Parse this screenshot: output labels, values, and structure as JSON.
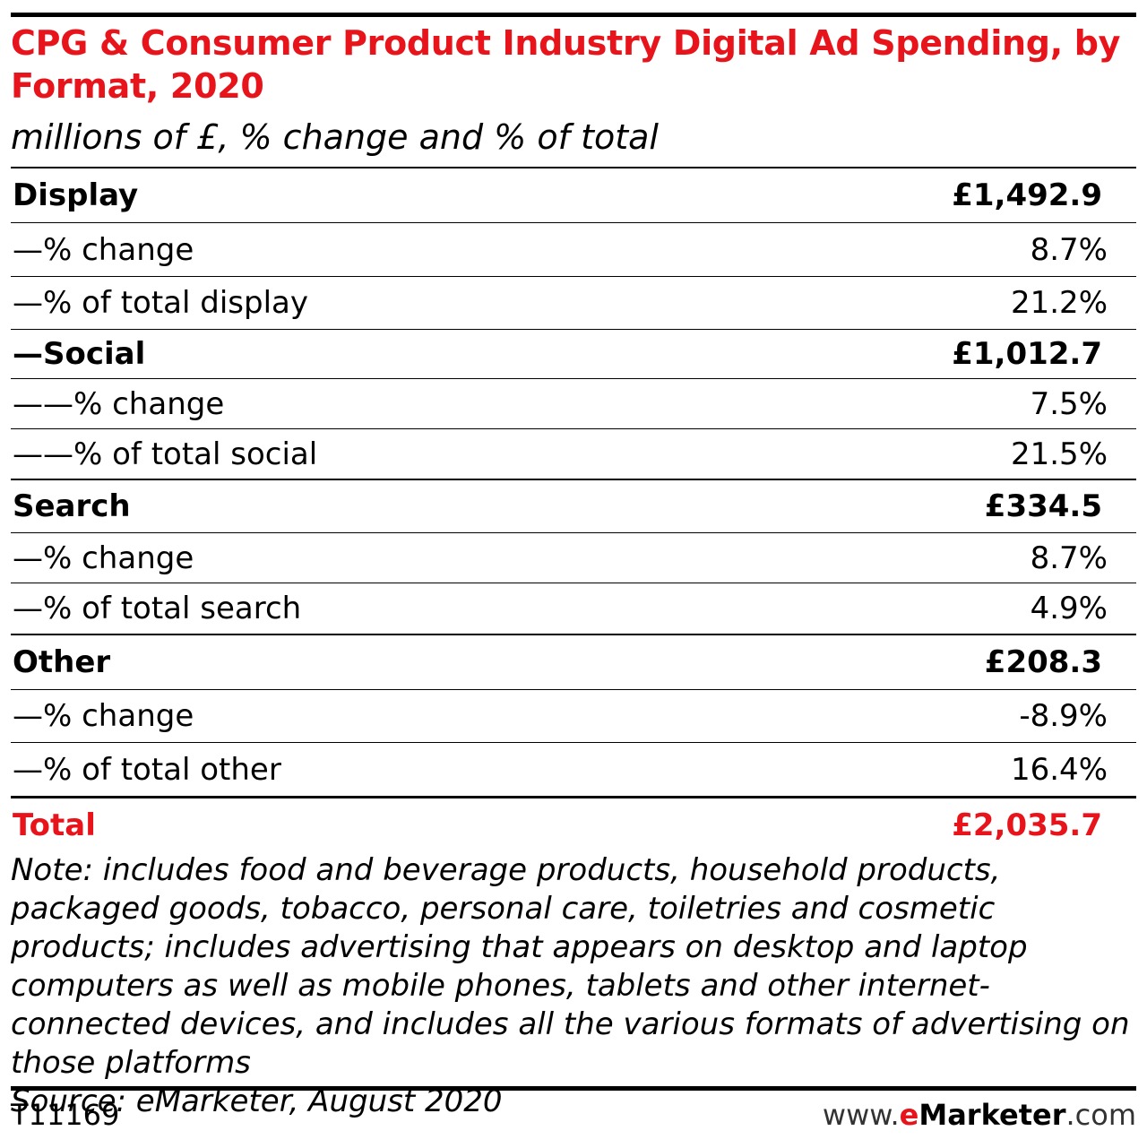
{
  "header": {
    "title": "CPG & Consumer Product Industry Digital Ad Spending, by Format, 2020",
    "subtitle": "millions of £, % change and % of total"
  },
  "chart_data": {
    "type": "table",
    "title": "CPG & Consumer Product Industry Digital Ad Spending, by Format, 2020",
    "subtitle": "millions of £, % change and % of total",
    "rows": [
      {
        "label": "Display",
        "value": "£1,492.9",
        "style": "head"
      },
      {
        "label": "—% change",
        "value": "8.7%",
        "style": "sub"
      },
      {
        "label": "—% of total display",
        "value": "21.2%",
        "style": "sub"
      },
      {
        "label": "—Social",
        "value": "£1,012.7",
        "style": "head"
      },
      {
        "label": "——% change",
        "value": "7.5%",
        "style": "sub"
      },
      {
        "label": "——% of total social",
        "value": "21.5%",
        "style": "sub"
      },
      {
        "label": "Search",
        "value": "£334.5",
        "style": "head"
      },
      {
        "label": "—% change",
        "value": "8.7%",
        "style": "sub"
      },
      {
        "label": "—% of total search",
        "value": "4.9%",
        "style": "sub"
      },
      {
        "label": "Other",
        "value": "£208.3",
        "style": "head"
      },
      {
        "label": "—% change",
        "value": "-8.9%",
        "style": "sub"
      },
      {
        "label": "—% of total other",
        "value": "16.4%",
        "style": "sub"
      },
      {
        "label": "Total",
        "value": "£2,035.7",
        "style": "total"
      }
    ]
  },
  "footer": {
    "note": "Note: includes food and beverage products, household products, packaged goods, tobacco, personal care, toiletries and cosmetic products; includes advertising that appears on desktop and laptop computers as well as mobile phones, tablets and other internet-connected devices, and includes all the various formats of advertising on those platforms",
    "source": "Source: eMarketer, August 2020",
    "code": "T11169",
    "brand_prefix": "www.",
    "brand_e": "e",
    "brand_name": "Marketer",
    "brand_suffix": ".com"
  },
  "colors": {
    "accent": "#e8141b",
    "text": "#000000"
  }
}
